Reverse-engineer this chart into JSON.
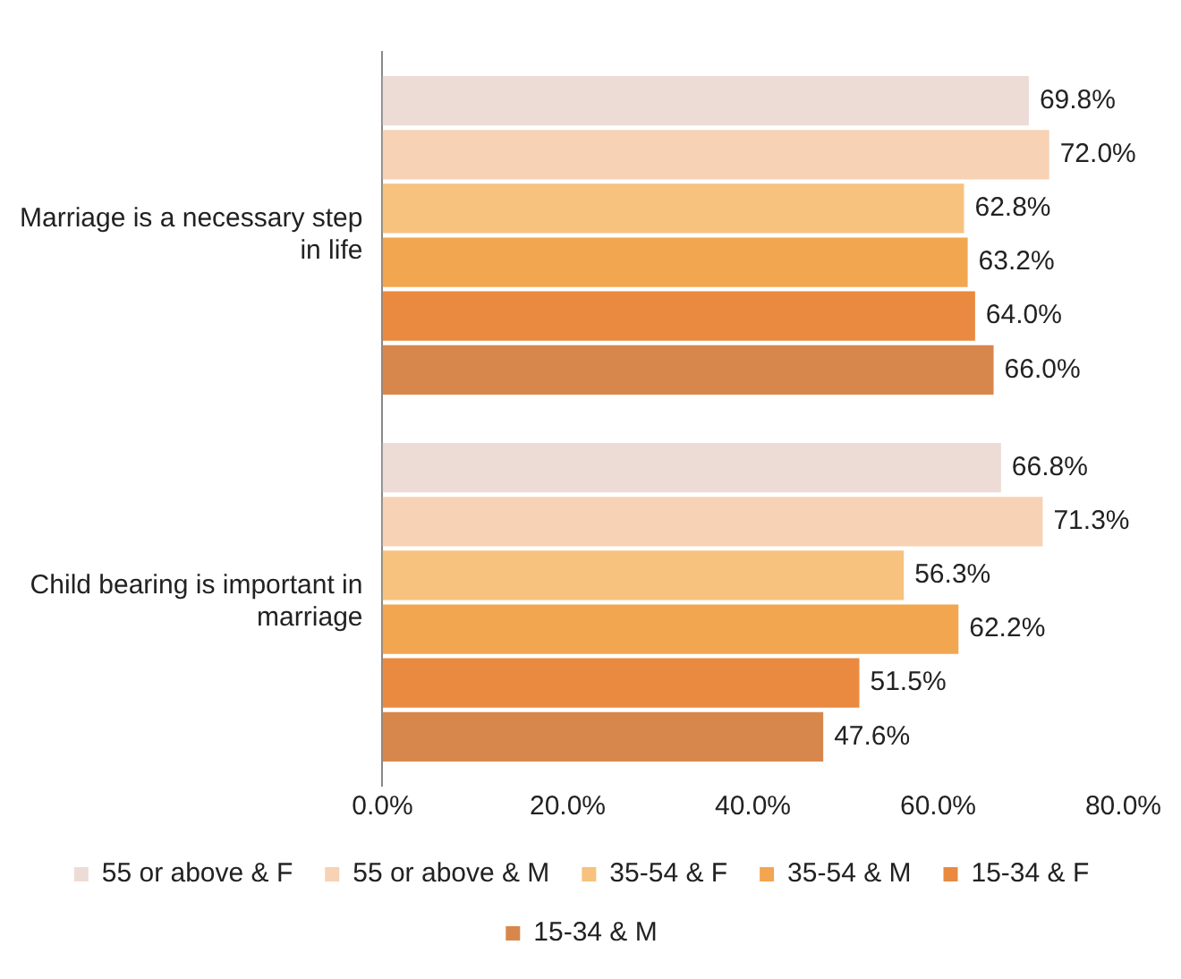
{
  "chart_data": {
    "type": "bar",
    "orientation": "horizontal",
    "categories": [
      "Marriage is a necessary step in life",
      "Child bearing is important in marriage"
    ],
    "series": [
      {
        "name": "55 or above & F",
        "color": "#eddcd6",
        "values": [
          69.8,
          66.8
        ],
        "value_labels": [
          "69.8%",
          "66.8%"
        ]
      },
      {
        "name": "55 or above & M",
        "color": "#f7d2b4",
        "values": [
          72.0,
          71.3
        ],
        "value_labels": [
          "72.0%",
          "71.3%"
        ]
      },
      {
        "name": "35-54 & F",
        "color": "#f6c27e",
        "values": [
          62.8,
          56.3
        ],
        "value_labels": [
          "62.8%",
          "56.3%"
        ]
      },
      {
        "name": "35-54 & M",
        "color": "#f2a650",
        "values": [
          63.2,
          62.2
        ],
        "value_labels": [
          "63.2%",
          "62.2%"
        ]
      },
      {
        "name": "15-34 & F",
        "color": "#e98a40",
        "values": [
          64.0,
          51.5
        ],
        "value_labels": [
          "64.0%",
          "51.5%"
        ]
      },
      {
        "name": "15-34 & M",
        "color": "#d8874c",
        "values": [
          66.0,
          47.6
        ],
        "value_labels": [
          "66.0%",
          "47.6%"
        ]
      }
    ],
    "xlim": [
      0,
      80
    ],
    "xticks": [
      {
        "value": 0,
        "label": "0.0%"
      },
      {
        "value": 20,
        "label": "20.0%"
      },
      {
        "value": 40,
        "label": "40.0%"
      },
      {
        "value": 60,
        "label": "60.0%"
      },
      {
        "value": 80,
        "label": "80.0%"
      }
    ],
    "grid": false,
    "legend": "bottom"
  }
}
